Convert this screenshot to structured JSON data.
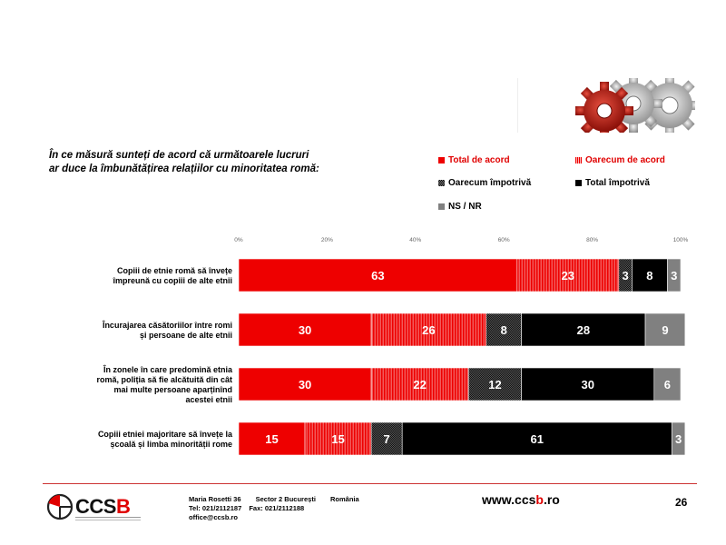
{
  "question": {
    "line1": "În ce măsură sunteți de acord că următoarele lucruri",
    "line2": "ar duce la îmbunătățirea relațiilor cu minoritatea romă:"
  },
  "legend": [
    {
      "label": "Total de acord",
      "color": "#ee0000",
      "pattern": "solid",
      "text_color": "#e00000"
    },
    {
      "label": "Oarecum de acord",
      "color": "#ee0000",
      "pattern": "vstripe",
      "text_color": "#e00000"
    },
    {
      "label": "Oarecum împotrivă",
      "color": "#000000",
      "pattern": "checker",
      "text_color": "#000000"
    },
    {
      "label": "Total împotrivă",
      "color": "#000000",
      "pattern": "solid",
      "text_color": "#000000"
    },
    {
      "label": "NS / NR",
      "color": "#808080",
      "pattern": "solid",
      "text_color": "#000000"
    }
  ],
  "chart_data": {
    "type": "bar",
    "orientation": "horizontal",
    "stacked": true,
    "xlim": [
      0,
      100
    ],
    "x_ticks": [
      "0%",
      "20%",
      "40%",
      "60%",
      "80%",
      "100%"
    ],
    "categories": [
      [
        "Copiii de etnie romă să învețe",
        "împreună cu copiii de alte etnii"
      ],
      [
        "Încurajarea căsătoriilor între romi",
        "și persoane de alte etnii"
      ],
      [
        "În zonele în care predomină etnia",
        "romă, poliția să fie alcătuită din cât",
        "mai multe persoane aparținînd",
        "acestei etnii"
      ],
      [
        "Copiii etniei majoritare să învețe la",
        "școală și limba minorității rome"
      ]
    ],
    "series": [
      {
        "name": "Total de acord",
        "values": [
          63,
          30,
          30,
          15
        ]
      },
      {
        "name": "Oarecum de acord",
        "values": [
          23,
          26,
          22,
          15
        ]
      },
      {
        "name": "Oarecum împotrivă",
        "values": [
          3,
          8,
          12,
          7
        ]
      },
      {
        "name": "Total împotrivă",
        "values": [
          8,
          28,
          30,
          61
        ]
      },
      {
        "name": "NS / NR",
        "values": [
          3,
          9,
          6,
          3
        ]
      }
    ]
  },
  "footer": {
    "logo_text": "CCSB",
    "address_1": "Maria Rosetti 36",
    "address_2": "Sector 2  București",
    "address_3": "România",
    "tel": "Tel: 021/2112187",
    "fax": "Fax: 021/2112188",
    "email": "office@ccsb.ro",
    "web_pre": "www.ccs",
    "web_b": "b",
    "web_post": ".ro",
    "page": "26"
  }
}
